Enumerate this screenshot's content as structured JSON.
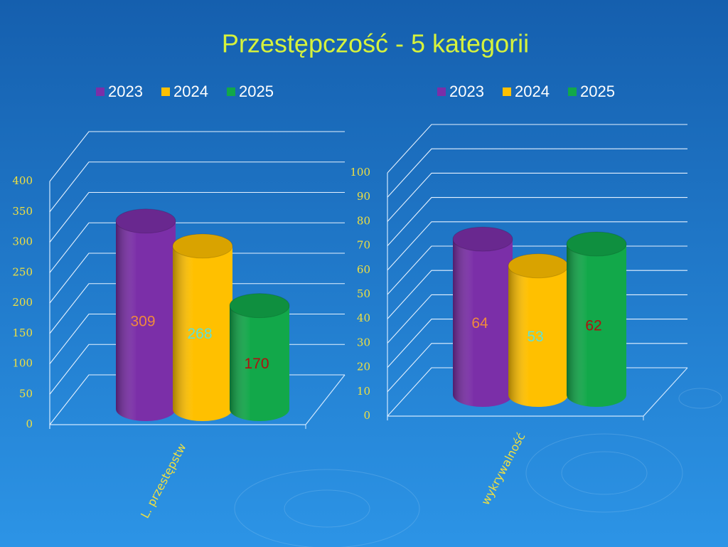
{
  "title": "Przestępczość - 5 kategorii",
  "chart_data": [
    {
      "type": "bar",
      "categories": [
        "L. przestępstw"
      ],
      "series": [
        {
          "name": "2023",
          "color": "#7b2fa8",
          "label_color": "#f08a3c",
          "values": [
            309
          ]
        },
        {
          "name": "2024",
          "color": "#ffc000",
          "label_color": "#5fe0d8",
          "values": [
            268
          ]
        },
        {
          "name": "2025",
          "color": "#12a84a",
          "label_color": "#b01010",
          "values": [
            170
          ]
        }
      ],
      "ylim": [
        0,
        400
      ],
      "yticks": [
        0,
        50,
        100,
        150,
        200,
        250,
        300,
        350,
        400
      ],
      "grid": true
    },
    {
      "type": "bar",
      "categories": [
        "wykrywalność"
      ],
      "series": [
        {
          "name": "2023",
          "color": "#7b2fa8",
          "label_color": "#f08a3c",
          "values": [
            64
          ]
        },
        {
          "name": "2024",
          "color": "#ffc000",
          "label_color": "#5fe0d8",
          "values": [
            53
          ]
        },
        {
          "name": "2025",
          "color": "#12a84a",
          "label_color": "#b01010",
          "values": [
            62
          ]
        }
      ],
      "ylim": [
        0,
        100
      ],
      "yticks": [
        0,
        10,
        20,
        30,
        40,
        50,
        60,
        70,
        80,
        90,
        100
      ],
      "grid": true
    }
  ]
}
